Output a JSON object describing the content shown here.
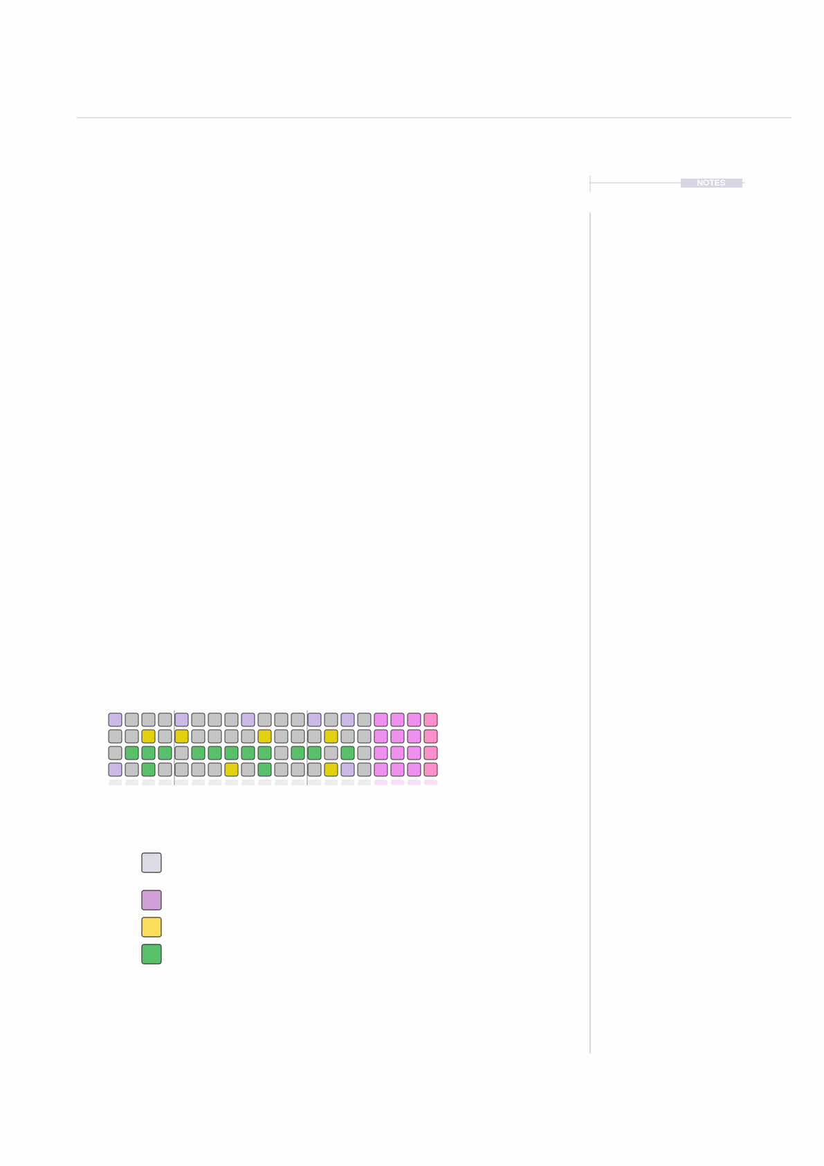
{
  "sidebar": {
    "label": "NOTES"
  }
}
